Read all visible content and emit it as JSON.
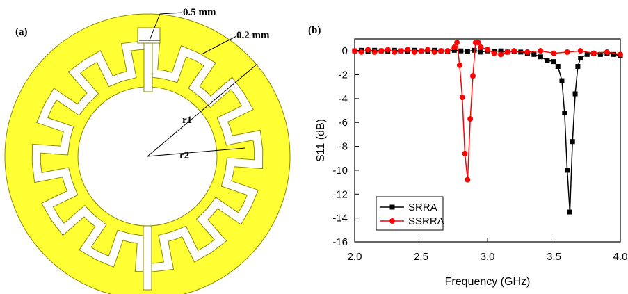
{
  "panel_a": {
    "label": "(a)",
    "dimension_gap": "0.5 mm",
    "dimension_strip": "0.2 mm",
    "radius_outer_label": "r1",
    "radius_inner_label": "r2",
    "colors": {
      "fill": "#ffff33",
      "stroke": "#8a8a00",
      "slot": "#ffffff"
    }
  },
  "panel_b": {
    "label": "(b)"
  },
  "chart_data": {
    "type": "line",
    "xlabel": "Frequency (GHz)",
    "ylabel": "S11 (dB)",
    "xlim": [
      2.0,
      4.0
    ],
    "ylim": [
      -16,
      1
    ],
    "xticks": [
      "2.0",
      "2.5",
      "3.0",
      "3.5",
      "4.0"
    ],
    "yticks": [
      "0",
      "-2",
      "-4",
      "-6",
      "-8",
      "-10",
      "-12",
      "-14",
      "-16"
    ],
    "xtick_values": [
      2.0,
      2.5,
      3.0,
      3.5,
      4.0
    ],
    "ytick_values": [
      0,
      -2,
      -4,
      -6,
      -8,
      -10,
      -12,
      -14,
      -16
    ],
    "grid": false,
    "legend_position": "bottom-left",
    "series": [
      {
        "name": "SRRA",
        "color": "#000000",
        "marker": "square",
        "x": [
          2.0,
          2.05,
          2.1,
          2.15,
          2.2,
          2.25,
          2.3,
          2.35,
          2.4,
          2.45,
          2.5,
          2.55,
          2.6,
          2.65,
          2.7,
          2.75,
          2.8,
          2.85,
          2.9,
          2.95,
          3.0,
          3.05,
          3.1,
          3.15,
          3.2,
          3.25,
          3.3,
          3.35,
          3.4,
          3.45,
          3.5,
          3.53,
          3.56,
          3.58,
          3.6,
          3.62,
          3.64,
          3.66,
          3.68,
          3.7,
          3.75,
          3.8,
          3.85,
          3.9,
          3.95,
          4.0
        ],
        "y": [
          0.0,
          0.05,
          -0.05,
          0.05,
          0.0,
          -0.05,
          0.05,
          0.0,
          -0.05,
          0.05,
          0.0,
          -0.05,
          0.05,
          0.0,
          -0.05,
          0.05,
          0.0,
          -0.05,
          0.05,
          -0.1,
          0.0,
          -0.05,
          0.0,
          -0.1,
          -0.05,
          -0.1,
          -0.2,
          -0.3,
          -0.5,
          -0.8,
          -0.9,
          -1.3,
          -2.5,
          -5.2,
          -10.0,
          -13.5,
          -7.6,
          -3.6,
          -1.3,
          -0.6,
          -0.3,
          -0.2,
          -0.3,
          -0.2,
          -0.3,
          -0.4
        ]
      },
      {
        "name": "SSRRA",
        "color": "#ff0000",
        "marker": "circle",
        "x": [
          2.0,
          2.05,
          2.1,
          2.15,
          2.2,
          2.25,
          2.3,
          2.35,
          2.4,
          2.45,
          2.5,
          2.55,
          2.6,
          2.65,
          2.7,
          2.75,
          2.77,
          2.79,
          2.81,
          2.83,
          2.85,
          2.87,
          2.89,
          2.91,
          2.93,
          2.95,
          3.0,
          3.05,
          3.1,
          3.15,
          3.2,
          3.3,
          3.4,
          3.5,
          3.6,
          3.7,
          3.8,
          3.9,
          4.0
        ],
        "y": [
          0.0,
          -0.1,
          0.1,
          -0.1,
          0.0,
          0.1,
          -0.1,
          0.0,
          0.1,
          -0.1,
          0.0,
          0.1,
          -0.1,
          0.0,
          0.0,
          0.3,
          0.7,
          -1.2,
          -3.9,
          -8.6,
          -10.8,
          -5.7,
          -2.1,
          0.7,
          0.7,
          0.3,
          0.1,
          -0.2,
          -0.3,
          -0.1,
          0.0,
          -0.1,
          0.0,
          -0.2,
          -0.1,
          0.0,
          -0.2,
          -0.1,
          -0.3
        ]
      }
    ]
  }
}
